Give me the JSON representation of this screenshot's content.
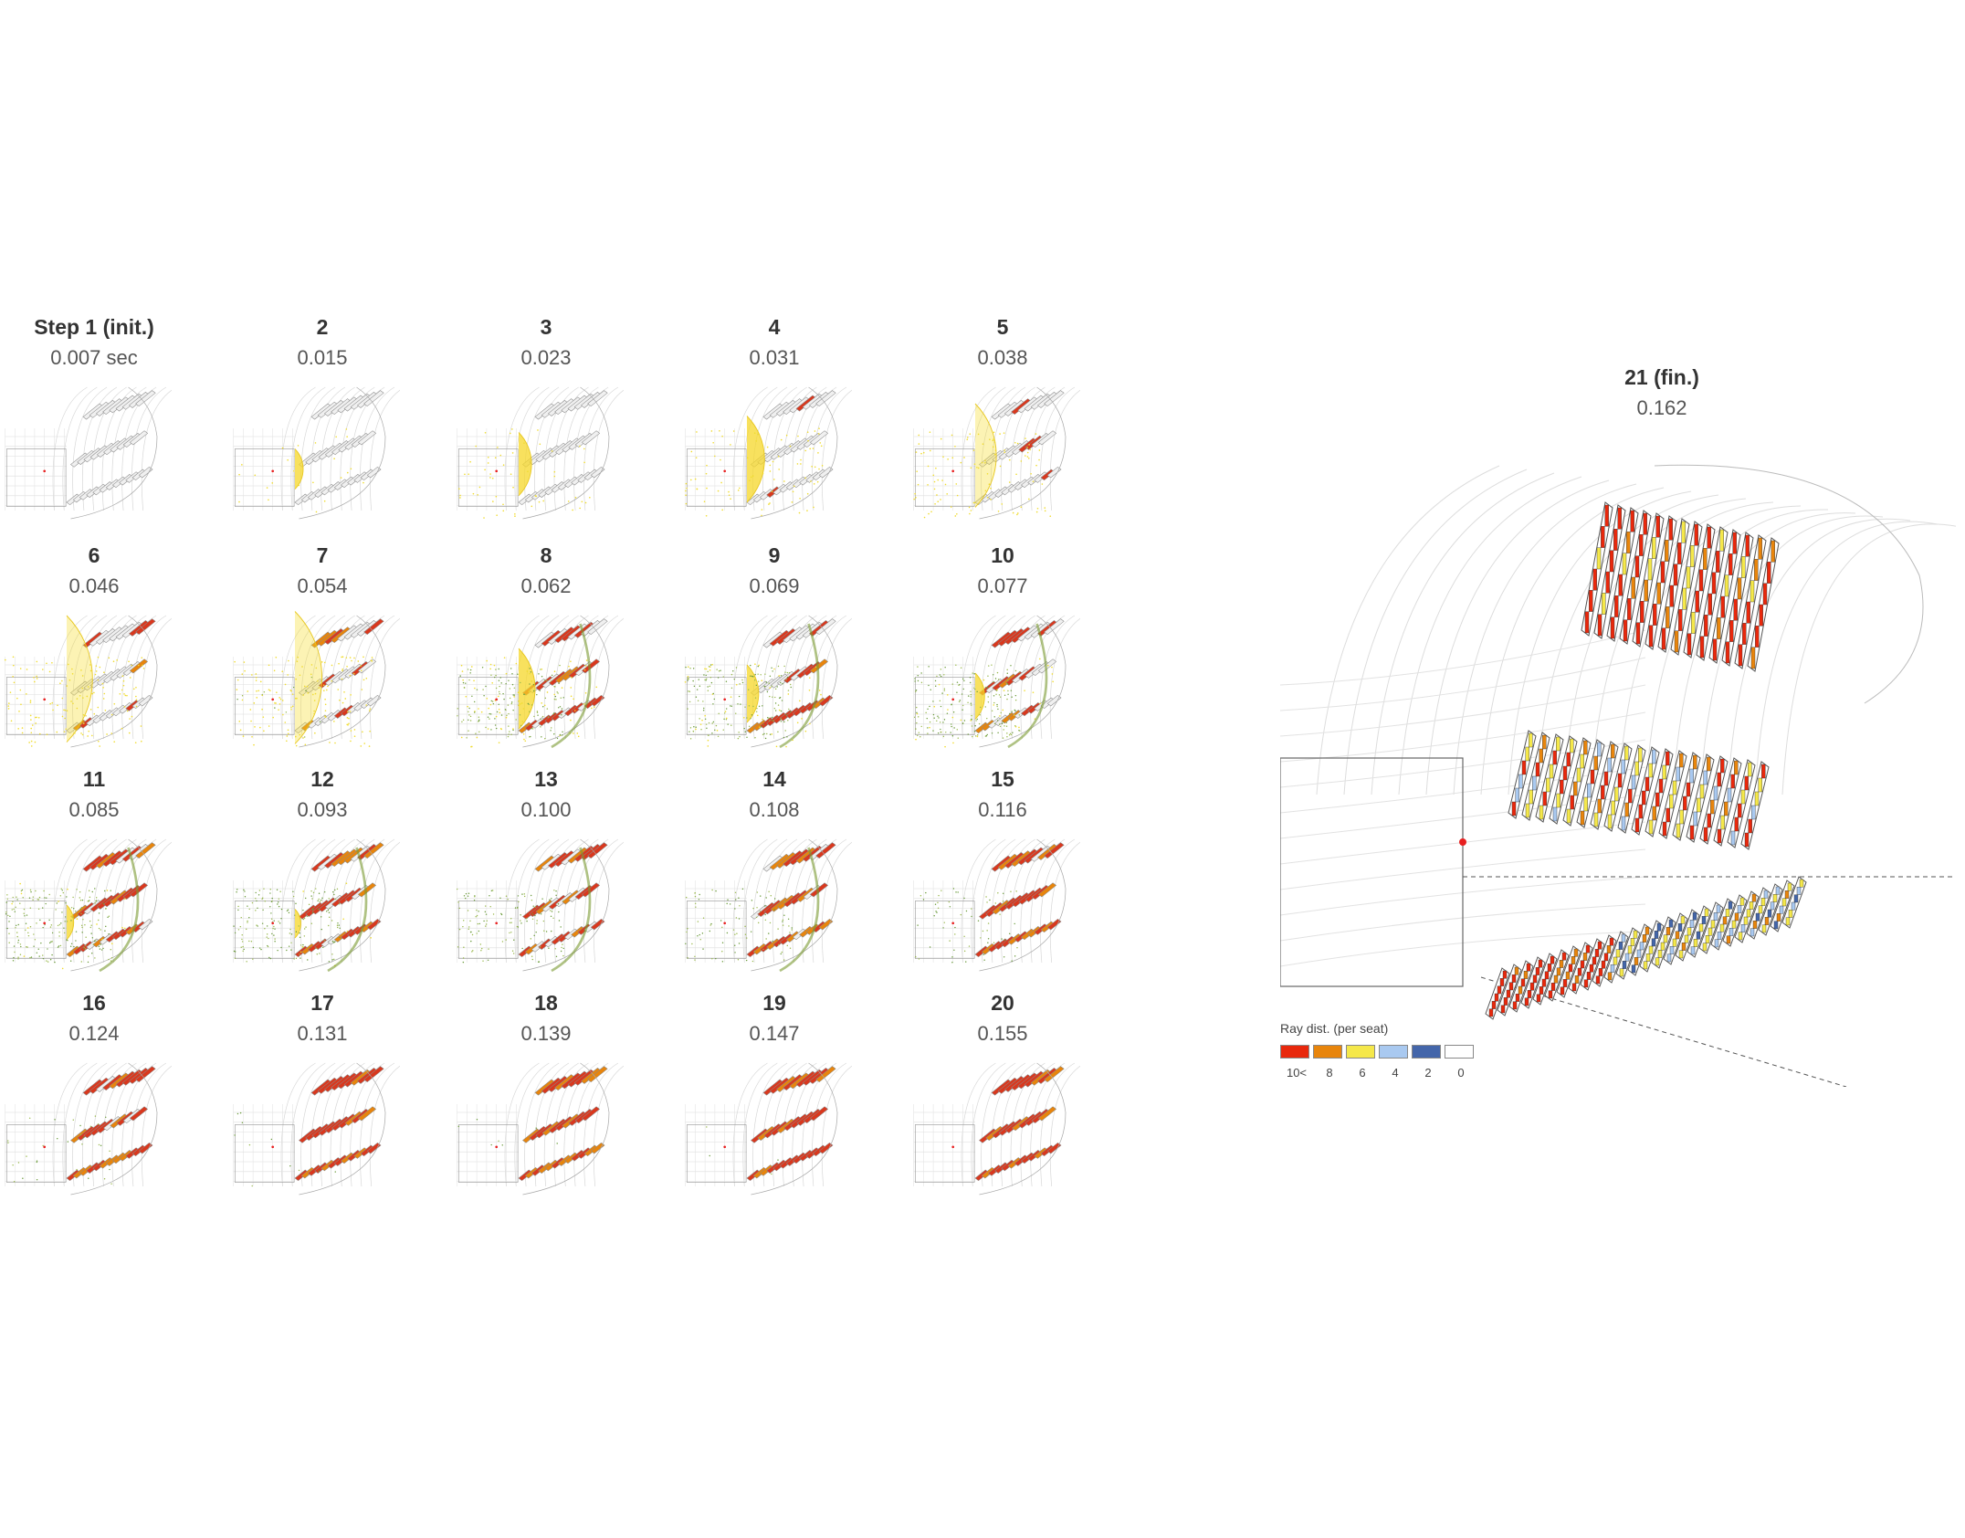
{
  "steps": [
    {
      "label": "Step 1 (init.)",
      "time": "0.007 sec",
      "yellow": 0,
      "green": 0,
      "red": 0
    },
    {
      "label": "2",
      "time": "0.015",
      "yellow": 0.15,
      "green": 0,
      "red": 0
    },
    {
      "label": "3",
      "time": "0.023",
      "yellow": 0.35,
      "green": 0,
      "red": 0
    },
    {
      "label": "4",
      "time": "0.031",
      "yellow": 0.55,
      "green": 0,
      "red": 0.05
    },
    {
      "label": "5",
      "time": "0.038",
      "yellow": 0.7,
      "green": 0,
      "red": 0.1
    },
    {
      "label": "6",
      "time": "0.046",
      "yellow": 0.9,
      "green": 0,
      "red": 0.3
    },
    {
      "label": "7",
      "time": "0.054",
      "yellow": 0.95,
      "green": 0.05,
      "red": 0.4
    },
    {
      "label": "8",
      "time": "0.062",
      "yellow": 0.5,
      "green": 0.7,
      "red": 0.5
    },
    {
      "label": "9",
      "time": "0.069",
      "yellow": 0.3,
      "green": 0.8,
      "red": 0.55
    },
    {
      "label": "10",
      "time": "0.077",
      "yellow": 0.2,
      "green": 0.85,
      "red": 0.6
    },
    {
      "label": "11",
      "time": "0.085",
      "yellow": 0.1,
      "green": 0.9,
      "red": 0.7
    },
    {
      "label": "12",
      "time": "0.093",
      "yellow": 0.05,
      "green": 0.8,
      "red": 0.75
    },
    {
      "label": "13",
      "time": "0.100",
      "yellow": 0,
      "green": 0.6,
      "red": 0.8
    },
    {
      "label": "14",
      "time": "0.108",
      "yellow": 0,
      "green": 0.45,
      "red": 0.85
    },
    {
      "label": "15",
      "time": "0.116",
      "yellow": 0,
      "green": 0.3,
      "red": 0.9
    },
    {
      "label": "16",
      "time": "0.124",
      "yellow": 0,
      "green": 0.15,
      "red": 0.92
    },
    {
      "label": "17",
      "time": "0.131",
      "yellow": 0,
      "green": 0.05,
      "red": 0.95
    },
    {
      "label": "18",
      "time": "0.139",
      "yellow": 0,
      "green": 0.03,
      "red": 0.97
    },
    {
      "label": "19",
      "time": "0.147",
      "yellow": 0,
      "green": 0.02,
      "red": 0.98
    },
    {
      "label": "20",
      "time": "0.155",
      "yellow": 0,
      "green": 0,
      "red": 1
    }
  ],
  "final": {
    "label": "21 (fin.)",
    "time": "0.162"
  },
  "legend": {
    "title": "Ray dist. (per seat)",
    "items": [
      {
        "label": "10<",
        "color": "#e8280c"
      },
      {
        "label": "8",
        "color": "#e8850c"
      },
      {
        "label": "6",
        "color": "#f5e84a"
      },
      {
        "label": "4",
        "color": "#a9c9f0"
      },
      {
        "label": "2",
        "color": "#4466aa"
      },
      {
        "label": "0",
        "color": "#ffffff"
      }
    ]
  }
}
